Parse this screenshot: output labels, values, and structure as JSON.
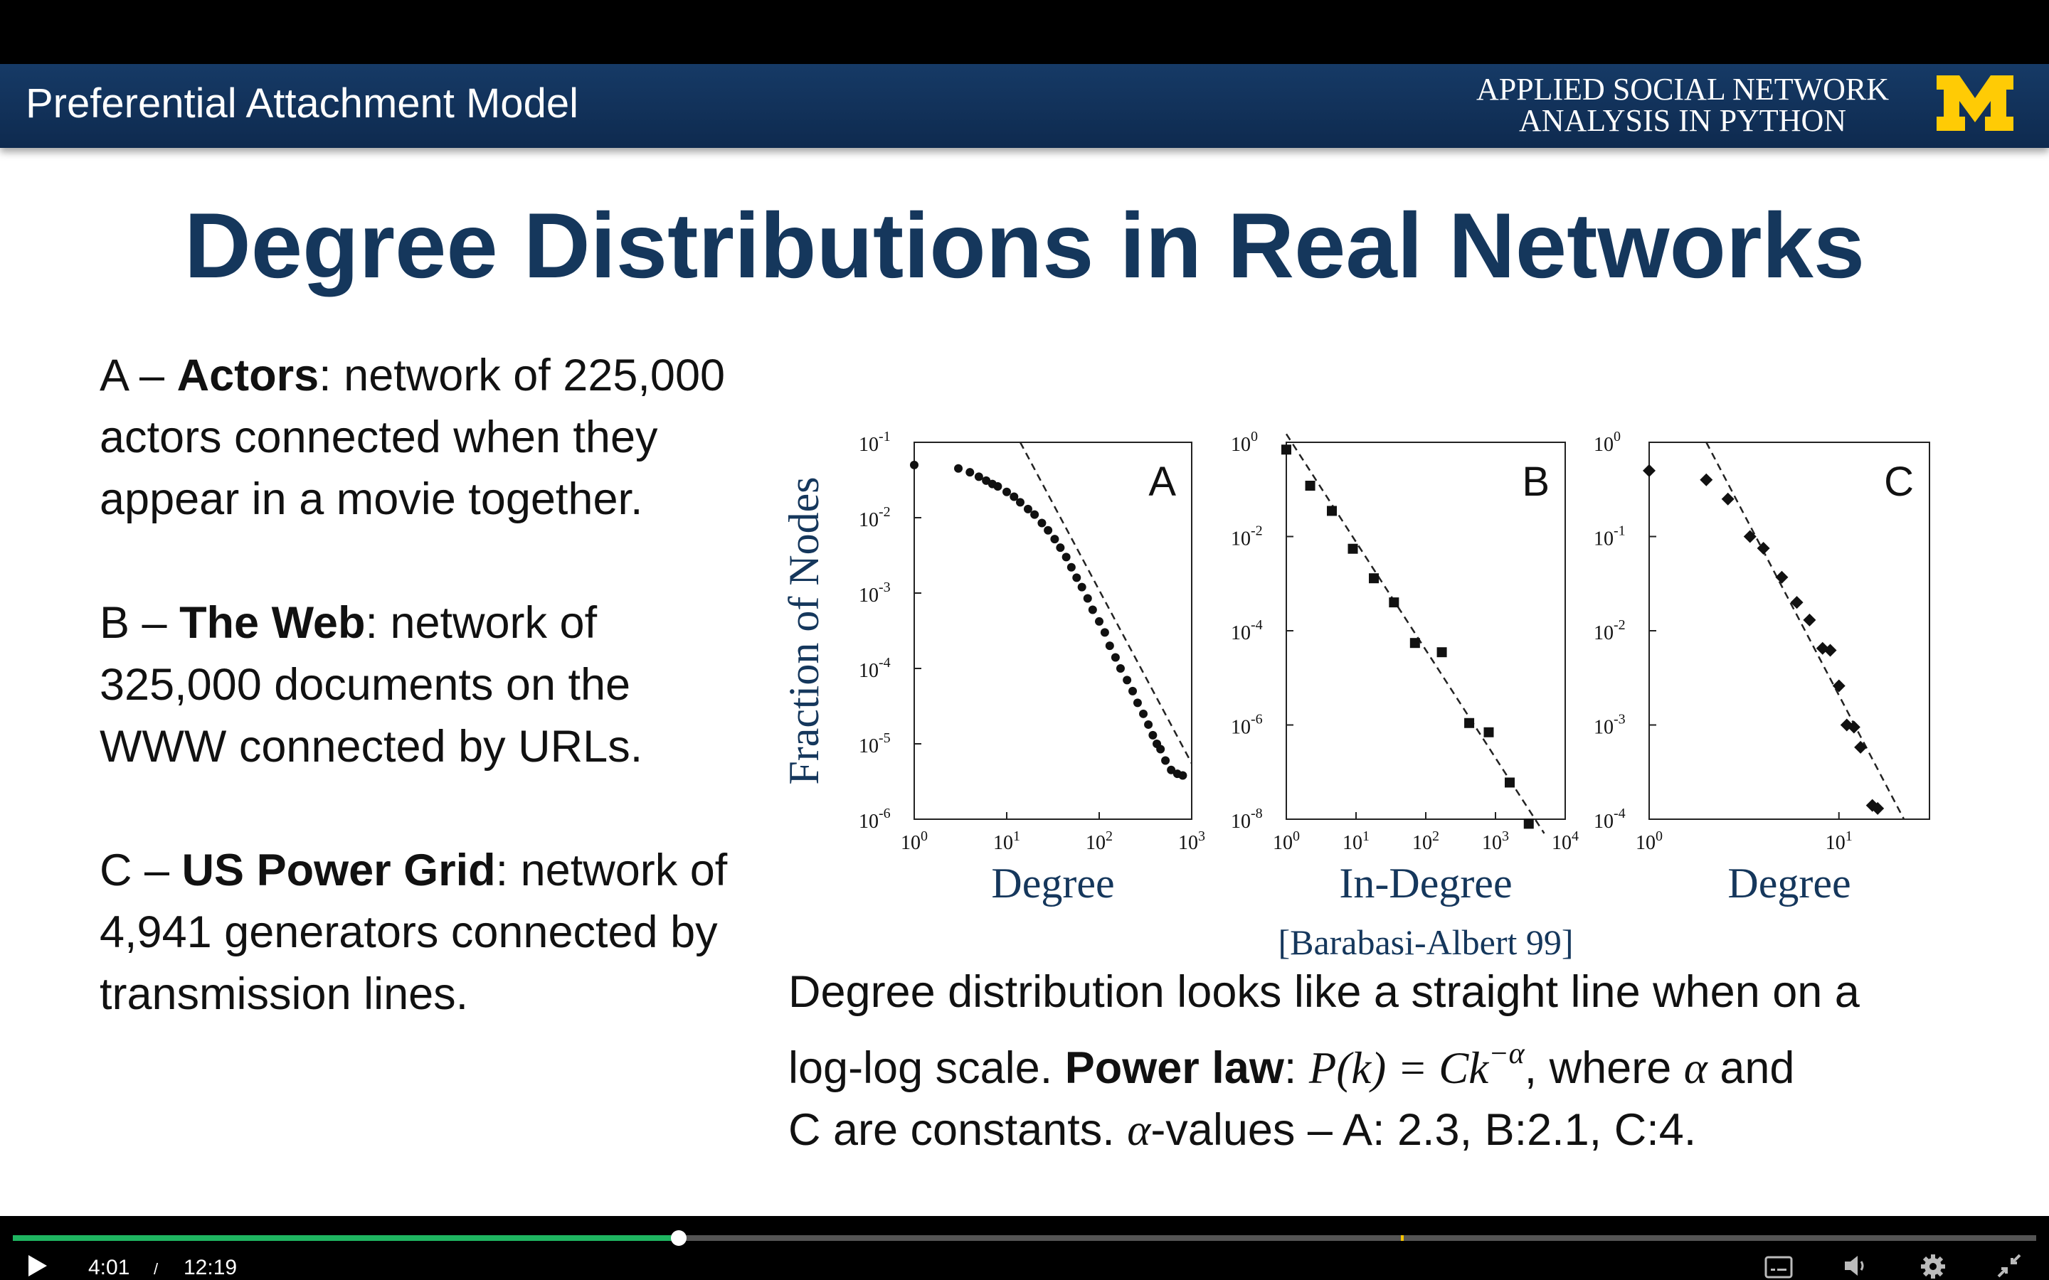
{
  "banner": {
    "title": "Preferential Attachment Model",
    "course_line1": "APPLIED SOCIAL NETWORK",
    "course_line2": "ANALYSIS IN PYTHON",
    "logo": "block-M-logo",
    "colors": {
      "bg": "#10305a",
      "logo": "#ffcb05"
    }
  },
  "heading": "Degree Distributions in Real Networks",
  "left": {
    "a_prefix": "A – ",
    "a_bold": "Actors",
    "a_text": ": network of 225,000 actors connected when they appear in a movie together.",
    "b_prefix": "B – ",
    "b_bold": "The Web",
    "b_text": ": network of 325,000 documents on the WWW connected by URLs.",
    "c_prefix": "C – ",
    "c_bold": "US Power Grid",
    "c_text": ": network of 4,941 generators connected by transmission lines."
  },
  "chart_data": [
    {
      "type": "scatter",
      "label": "A",
      "xlabel": "Degree",
      "ylabel": "Fraction of Nodes",
      "scale": "log-log",
      "xlim": [
        1,
        1000
      ],
      "ylim": [
        1e-06,
        0.1
      ],
      "xticks": [
        "10^0",
        "10^1",
        "10^2",
        "10^3"
      ],
      "yticks": [
        "10^-1",
        "10^-2",
        "10^-3",
        "10^-4",
        "10^-5",
        "10^-6"
      ],
      "points": [
        [
          1,
          0.05
        ],
        [
          3,
          0.045
        ],
        [
          4,
          0.04
        ],
        [
          5,
          0.035
        ],
        [
          6,
          0.031
        ],
        [
          7,
          0.028
        ],
        [
          8,
          0.026
        ],
        [
          10,
          0.022
        ],
        [
          12,
          0.019
        ],
        [
          14,
          0.016
        ],
        [
          17,
          0.013
        ],
        [
          20,
          0.011
        ],
        [
          24,
          0.0085
        ],
        [
          28,
          0.0068
        ],
        [
          33,
          0.0052
        ],
        [
          38,
          0.004
        ],
        [
          44,
          0.003
        ],
        [
          50,
          0.0022
        ],
        [
          57,
          0.0016
        ],
        [
          65,
          0.0012
        ],
        [
          75,
          0.00085
        ],
        [
          85,
          0.0006
        ],
        [
          100,
          0.00042
        ],
        [
          115,
          0.0003
        ],
        [
          130,
          0.0002
        ],
        [
          150,
          0.00014
        ],
        [
          170,
          0.0001
        ],
        [
          200,
          7e-05
        ],
        [
          230,
          5e-05
        ],
        [
          260,
          3.5e-05
        ],
        [
          300,
          2.5e-05
        ],
        [
          340,
          1.8e-05
        ],
        [
          380,
          1.3e-05
        ],
        [
          420,
          1e-05
        ],
        [
          460,
          8.5e-06
        ],
        [
          520,
          6e-06
        ],
        [
          600,
          4.5e-06
        ],
        [
          700,
          4e-06
        ],
        [
          800,
          3.8e-06
        ]
      ],
      "fit_line": {
        "x": [
          14,
          1000
        ],
        "y": [
          0.1,
          5.5e-06
        ]
      }
    },
    {
      "type": "scatter",
      "label": "B",
      "xlabel": "In-Degree",
      "scale": "log-log",
      "xlim": [
        1,
        10000
      ],
      "ylim": [
        1e-08,
        1
      ],
      "xticks": [
        "10^0",
        "10^1",
        "10^2",
        "10^3",
        "10^4"
      ],
      "yticks": [
        "10^0",
        "10^-2",
        "10^-4",
        "10^-6",
        "10^-8"
      ],
      "points": [
        [
          1,
          0.7
        ],
        [
          2.2,
          0.12
        ],
        [
          4.5,
          0.035
        ],
        [
          9,
          0.0055
        ],
        [
          18,
          0.0013
        ],
        [
          35,
          0.0004
        ],
        [
          70,
          5.5e-05
        ],
        [
          170,
          3.5e-05
        ],
        [
          420,
          1.1e-06
        ],
        [
          800,
          7e-07
        ],
        [
          1600,
          6e-08
        ],
        [
          3000,
          8e-09
        ]
      ],
      "fit_line": {
        "x": [
          1,
          5000
        ],
        "y": [
          1.5,
          5e-09
        ]
      },
      "source": "[Barabasi-Albert 99]"
    },
    {
      "type": "scatter",
      "label": "C",
      "xlabel": "Degree",
      "scale": "log-log",
      "xlim": [
        1,
        30
      ],
      "ylim": [
        0.0001,
        1
      ],
      "xticks": [
        "10^0",
        "10^1"
      ],
      "yticks": [
        "10^0",
        "10^-1",
        "10^-2",
        "10^-3",
        "10^-4"
      ],
      "points": [
        [
          1,
          0.5
        ],
        [
          2,
          0.4
        ],
        [
          2.6,
          0.25
        ],
        [
          3.4,
          0.1
        ],
        [
          4,
          0.075
        ],
        [
          5,
          0.037
        ],
        [
          6,
          0.02
        ],
        [
          7,
          0.013
        ],
        [
          8.2,
          0.0065
        ],
        [
          9,
          0.0062
        ],
        [
          10,
          0.0026
        ],
        [
          11,
          0.001
        ],
        [
          12,
          0.00095
        ],
        [
          13,
          0.00058
        ],
        [
          15,
          0.00014
        ],
        [
          16,
          0.00013
        ]
      ],
      "fit_line": {
        "x": [
          2,
          22
        ],
        "y": [
          1,
          0.0001
        ]
      }
    }
  ],
  "note": {
    "line1": "Degree distribution looks like a straight line when on a",
    "pre": "log-log scale. ",
    "bold": "Power law",
    "colon": ": ",
    "formula": "P(k) = Ck",
    "exponent": "−α",
    "after": ", where ",
    "alpha1": "α",
    "and": " and",
    "line3a": "C are constants. ",
    "alpha2": "α",
    "line3b": "-values – A: 2.3, B:2.1, C:4."
  },
  "player": {
    "current": "4:01",
    "separator": "/",
    "duration": "12:19",
    "progress": 0.329,
    "marker": 0.686
  }
}
